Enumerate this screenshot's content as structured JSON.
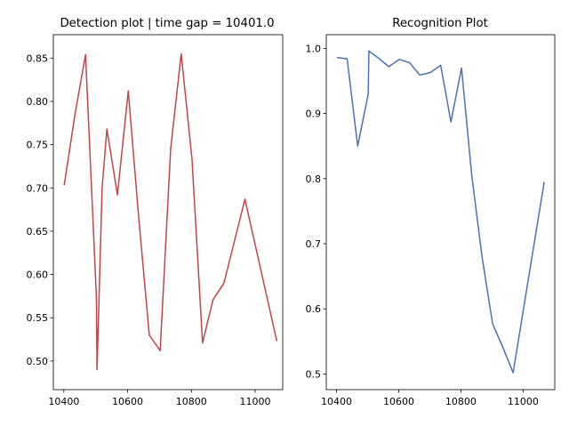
{
  "chart_data": [
    {
      "type": "line",
      "title": "Detection plot | time gap = 10401.0",
      "xlabel": "",
      "ylabel": "",
      "xlim": [
        10367,
        10086.5
      ],
      "ylim": [
        0.467,
        0.877
      ],
      "x_ticks": [
        10400,
        10600,
        10800,
        11000
      ],
      "x_tick_labels": [
        "10400",
        "10600",
        "10800",
        "11000"
      ],
      "y_ticks": [
        0.5,
        0.55,
        0.6,
        0.65,
        0.7,
        0.75,
        0.8,
        0.85
      ],
      "y_tick_labels": [
        "0.50",
        "0.55",
        "0.60",
        "0.65",
        "0.70",
        "0.75",
        "0.80",
        "0.85"
      ],
      "grid": false,
      "color": "#c0464b",
      "x": [
        10401,
        10434,
        10468,
        10502,
        10504,
        10520,
        10535,
        10568,
        10602,
        10635,
        10668,
        10702,
        10735,
        10768,
        10802,
        10835,
        10868,
        10902,
        10968,
        11068
      ],
      "y": [
        0.703,
        0.783,
        0.854,
        0.575,
        0.49,
        0.7,
        0.768,
        0.692,
        0.812,
        0.665,
        0.53,
        0.512,
        0.745,
        0.855,
        0.733,
        0.521,
        0.571,
        0.59,
        0.687,
        0.523
      ]
    },
    {
      "type": "line",
      "title": "Recognition Plot",
      "xlabel": "",
      "ylabel": "",
      "xlim": [
        10367,
        11102
      ],
      "ylim": [
        0.476,
        1.021
      ],
      "x_ticks": [
        10400,
        10600,
        10800,
        11000
      ],
      "x_tick_labels": [
        "10400",
        "10600",
        "10800",
        "11000"
      ],
      "y_ticks": [
        0.5,
        0.6,
        0.7,
        0.8,
        0.9,
        1.0
      ],
      "y_tick_labels": [
        "0.5",
        "0.6",
        "0.7",
        "0.8",
        "0.9",
        "1.0"
      ],
      "grid": false,
      "color": "#4c72b0",
      "x": [
        10401,
        10434,
        10468,
        10502,
        10504,
        10535,
        10568,
        10602,
        10635,
        10668,
        10702,
        10735,
        10768,
        10802,
        10835,
        10868,
        10902,
        10935,
        10968,
        11068
      ],
      "y": [
        0.986,
        0.984,
        0.85,
        0.93,
        0.996,
        0.985,
        0.972,
        0.983,
        0.978,
        0.959,
        0.963,
        0.974,
        0.887,
        0.97,
        0.805,
        0.68,
        0.577,
        0.541,
        0.502,
        0.795
      ]
    }
  ]
}
